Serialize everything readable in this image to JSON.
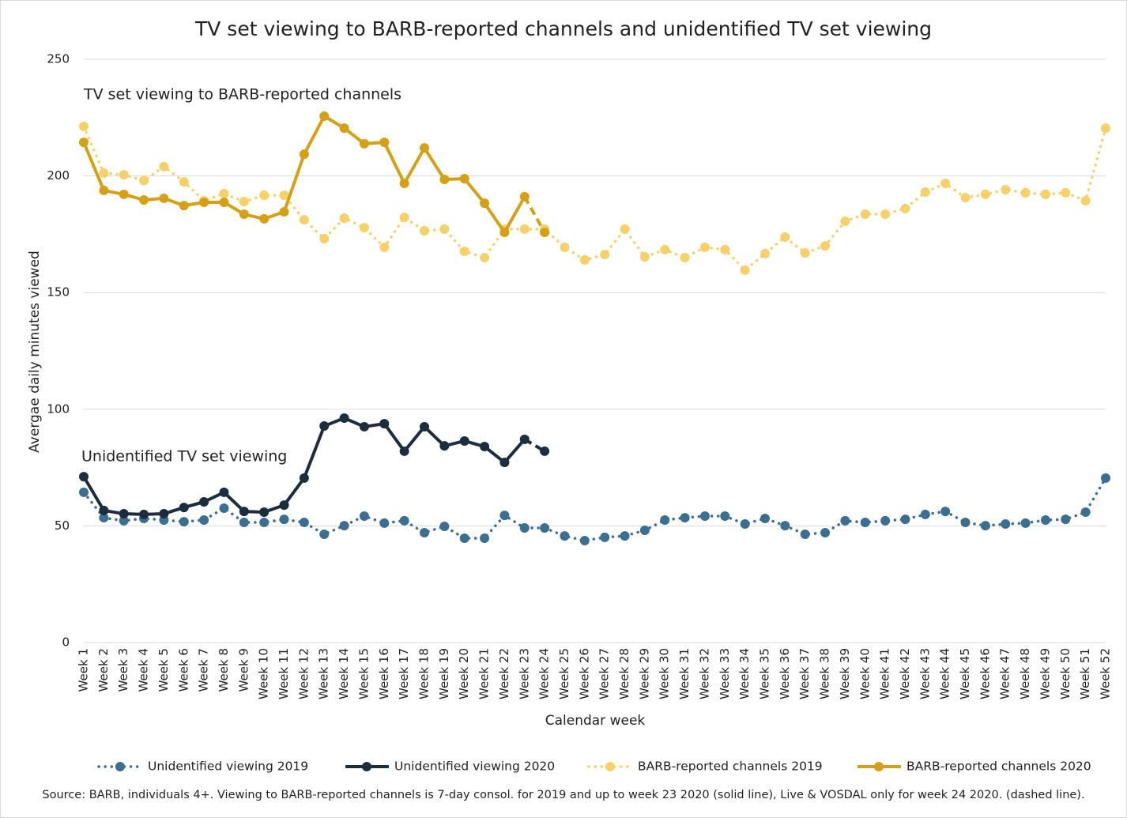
{
  "chart_data": {
    "type": "line",
    "title": "TV set viewing to BARB-reported channels and unidentified TV set viewing",
    "x_label": "Calendar week",
    "y_label": "Avergae daily minutes viewed",
    "annotations": [
      "TV set viewing to BARB-reported channels",
      "Unidentified TV set viewing"
    ],
    "source": "Source: BARB, individuals 4+. Viewing to BARB-reported channels is 7-day consol. for 2019 and up to week 23 2020 (solid line), Live & VOSDAL only for week 24 2020. (dashed line).",
    "categories": [
      "Week 1",
      "Week 2",
      "Week 3",
      "Week 4",
      "Week 5",
      "Week 6",
      "Week 7",
      "Week 8",
      "Week 9",
      "Week 10",
      "Week 11",
      "Week 12",
      "Week 13",
      "Week 14",
      "Week 15",
      "Week 16",
      "Week 17",
      "Week 18",
      "Week 19",
      "Week 20",
      "Week 21",
      "Week 22",
      "Week 23",
      "Week 24",
      "Week 25",
      "Week 26",
      "Week 27",
      "Week 28",
      "Week 29",
      "Week 30",
      "Week 31",
      "Week 32",
      "Week 33",
      "Week 34",
      "Week 35",
      "Week 36",
      "Week 37",
      "Week 38",
      "Week 39",
      "Week 40",
      "Week 41",
      "Week 42",
      "Week 43",
      "Week 44",
      "Week 45",
      "Week 46",
      "Week 47",
      "Week 48",
      "Week 49",
      "Week 50",
      "Week 51",
      "Week 52"
    ],
    "ylim": [
      0,
      250
    ],
    "yticks": [
      0,
      50,
      100,
      150,
      200,
      250
    ],
    "grid": true,
    "legend": "bottom",
    "series": [
      {
        "name": "Unidentified viewing 2019",
        "color": "#3b6e8f",
        "line_style": "dotted",
        "values": [
          64.4,
          53.5,
          52.2,
          53.2,
          52.5,
          51.8,
          52.5,
          57.6,
          51.5,
          51.5,
          52.8,
          51.5,
          46.4,
          50.1,
          54.2,
          51.2,
          52.2,
          47.1,
          49.8,
          44.7,
          44.7,
          54.5,
          49.1,
          49.1,
          45.7,
          43.7,
          45.1,
          45.7,
          48.1,
          52.5,
          53.5,
          54.2,
          54.2,
          50.8,
          53.2,
          50.1,
          46.4,
          47.1,
          52.2,
          51.5,
          52.2,
          52.8,
          54.9,
          56.2,
          51.5,
          50.1,
          50.8,
          51.2,
          52.5,
          52.8,
          55.9,
          70.5
        ]
      },
      {
        "name": "Unidentified viewing 2020",
        "color": "#1c2e3d",
        "line_style": "solid",
        "dashed_last_segment": true,
        "values": [
          71.1,
          56.6,
          55.2,
          54.9,
          55.2,
          57.9,
          60.3,
          64.4,
          56.2,
          55.9,
          58.9,
          70.5,
          92.8,
          96.2,
          92.5,
          93.8,
          82,
          92.5,
          84.3,
          86.4,
          84,
          77.2,
          87.1,
          82,
          null,
          null,
          null,
          null,
          null,
          null,
          null,
          null,
          null,
          null,
          null,
          null,
          null,
          null,
          null,
          null,
          null,
          null,
          null,
          null,
          null,
          null,
          null,
          null,
          null,
          null,
          null,
          null
        ]
      },
      {
        "name": "BARB-reported channels 2019",
        "color": "#f5d06b",
        "line_style": "dotted",
        "values": [
          221.2,
          201.2,
          200.5,
          198,
          204,
          197.5,
          189.4,
          192.4,
          189,
          191.7,
          191.7,
          181.2,
          173.1,
          181.9,
          177.8,
          169.4,
          182.2,
          176.5,
          177.2,
          167.7,
          165,
          177.2,
          177.2,
          177.2,
          169.4,
          164,
          166.3,
          177.2,
          165.3,
          168.4,
          165,
          169.4,
          168.4,
          159.6,
          166.7,
          173.8,
          167,
          170,
          180.6,
          183.6,
          183.6,
          186,
          193.1,
          196.8,
          190.7,
          192.1,
          194.1,
          192.8,
          192.1,
          192.8,
          189.4,
          220.5
        ]
      },
      {
        "name": "BARB-reported channels 2020",
        "color": "#d4a017",
        "line_style": "solid",
        "dashed_last_segment": true,
        "values": [
          214.4,
          193.8,
          192.1,
          189.7,
          190.4,
          187.3,
          188.7,
          188.7,
          183.6,
          181.6,
          184.6,
          209.3,
          225.6,
          220.5,
          213.8,
          214.4,
          196.8,
          212,
          198.5,
          198.8,
          188.3,
          175.8,
          191.1,
          175.8,
          null,
          null,
          null,
          null,
          null,
          null,
          null,
          null,
          null,
          null,
          null,
          null,
          null,
          null,
          null,
          null,
          null,
          null,
          null,
          null,
          null,
          null,
          null,
          null,
          null,
          null,
          null,
          null
        ]
      }
    ]
  }
}
